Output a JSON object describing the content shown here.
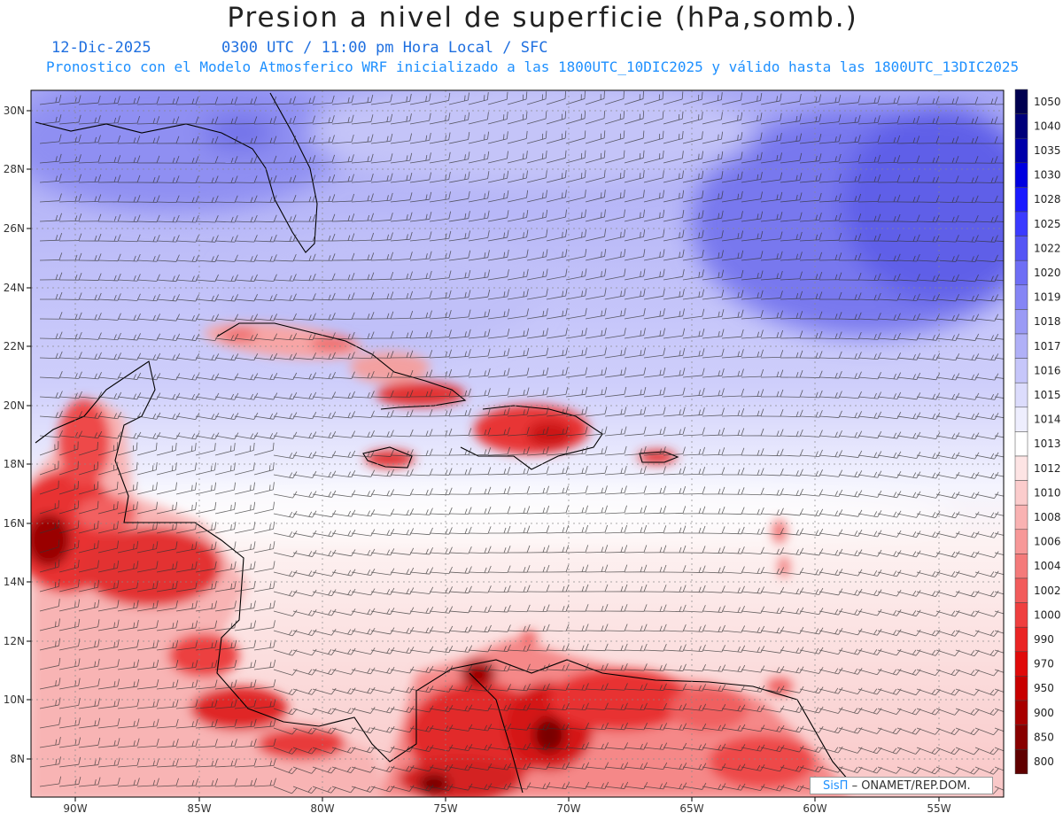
{
  "title": "Presion a nivel de superficie (hPa,somb.)",
  "date": "12-Dic-2025",
  "valid_time": "0300 UTC / 11:00 pm Hora Local / SFC",
  "forecast_line": "Pronostico con el Modelo Atmosferico WRF inicializado a las 1800UTC_10DIC2025 y válido hasta las  1800UTC_13DIC2025",
  "credit_brand": "SisΠ",
  "credit_text": "– ONAMET/REP.DOM.",
  "lat_labels": [
    "30N",
    "28N",
    "26N",
    "24N",
    "22N",
    "20N",
    "18N",
    "16N",
    "14N",
    "12N",
    "10N",
    "8N"
  ],
  "lon_labels": [
    "90W",
    "85W",
    "80W",
    "75W",
    "70W",
    "65W",
    "60W",
    "55W"
  ],
  "colorbar": [
    {
      "label": "1050",
      "color": "#000050"
    },
    {
      "label": "1040",
      "color": "#00007a"
    },
    {
      "label": "1035",
      "color": "#0000aa"
    },
    {
      "label": "1030",
      "color": "#0000e0"
    },
    {
      "label": "1028",
      "color": "#1a1aff"
    },
    {
      "label": "1025",
      "color": "#3a3aff"
    },
    {
      "label": "1022",
      "color": "#5555f5"
    },
    {
      "label": "1020",
      "color": "#6e6ef5"
    },
    {
      "label": "1019",
      "color": "#8585f5"
    },
    {
      "label": "1018",
      "color": "#9a9af5"
    },
    {
      "label": "1017",
      "color": "#b0b0f7"
    },
    {
      "label": "1016",
      "color": "#c6c6fa"
    },
    {
      "label": "1015",
      "color": "#dcdcfc"
    },
    {
      "label": "1014",
      "color": "#eeeefe"
    },
    {
      "label": "1013",
      "color": "#ffffff"
    },
    {
      "label": "1012",
      "color": "#fde4e4"
    },
    {
      "label": "1010",
      "color": "#fbcccc"
    },
    {
      "label": "1008",
      "color": "#f9b2b2"
    },
    {
      "label": "1006",
      "color": "#f79898"
    },
    {
      "label": "1004",
      "color": "#f47a7a"
    },
    {
      "label": "1002",
      "color": "#f25c5c"
    },
    {
      "label": "1000",
      "color": "#ef3f3f"
    },
    {
      "label": "990",
      "color": "#ea2424"
    },
    {
      "label": "970",
      "color": "#e00a0a"
    },
    {
      "label": "950",
      "color": "#c80000"
    },
    {
      "label": "900",
      "color": "#a80000"
    },
    {
      "label": "850",
      "color": "#880000"
    },
    {
      "label": "800",
      "color": "#600000"
    }
  ]
}
